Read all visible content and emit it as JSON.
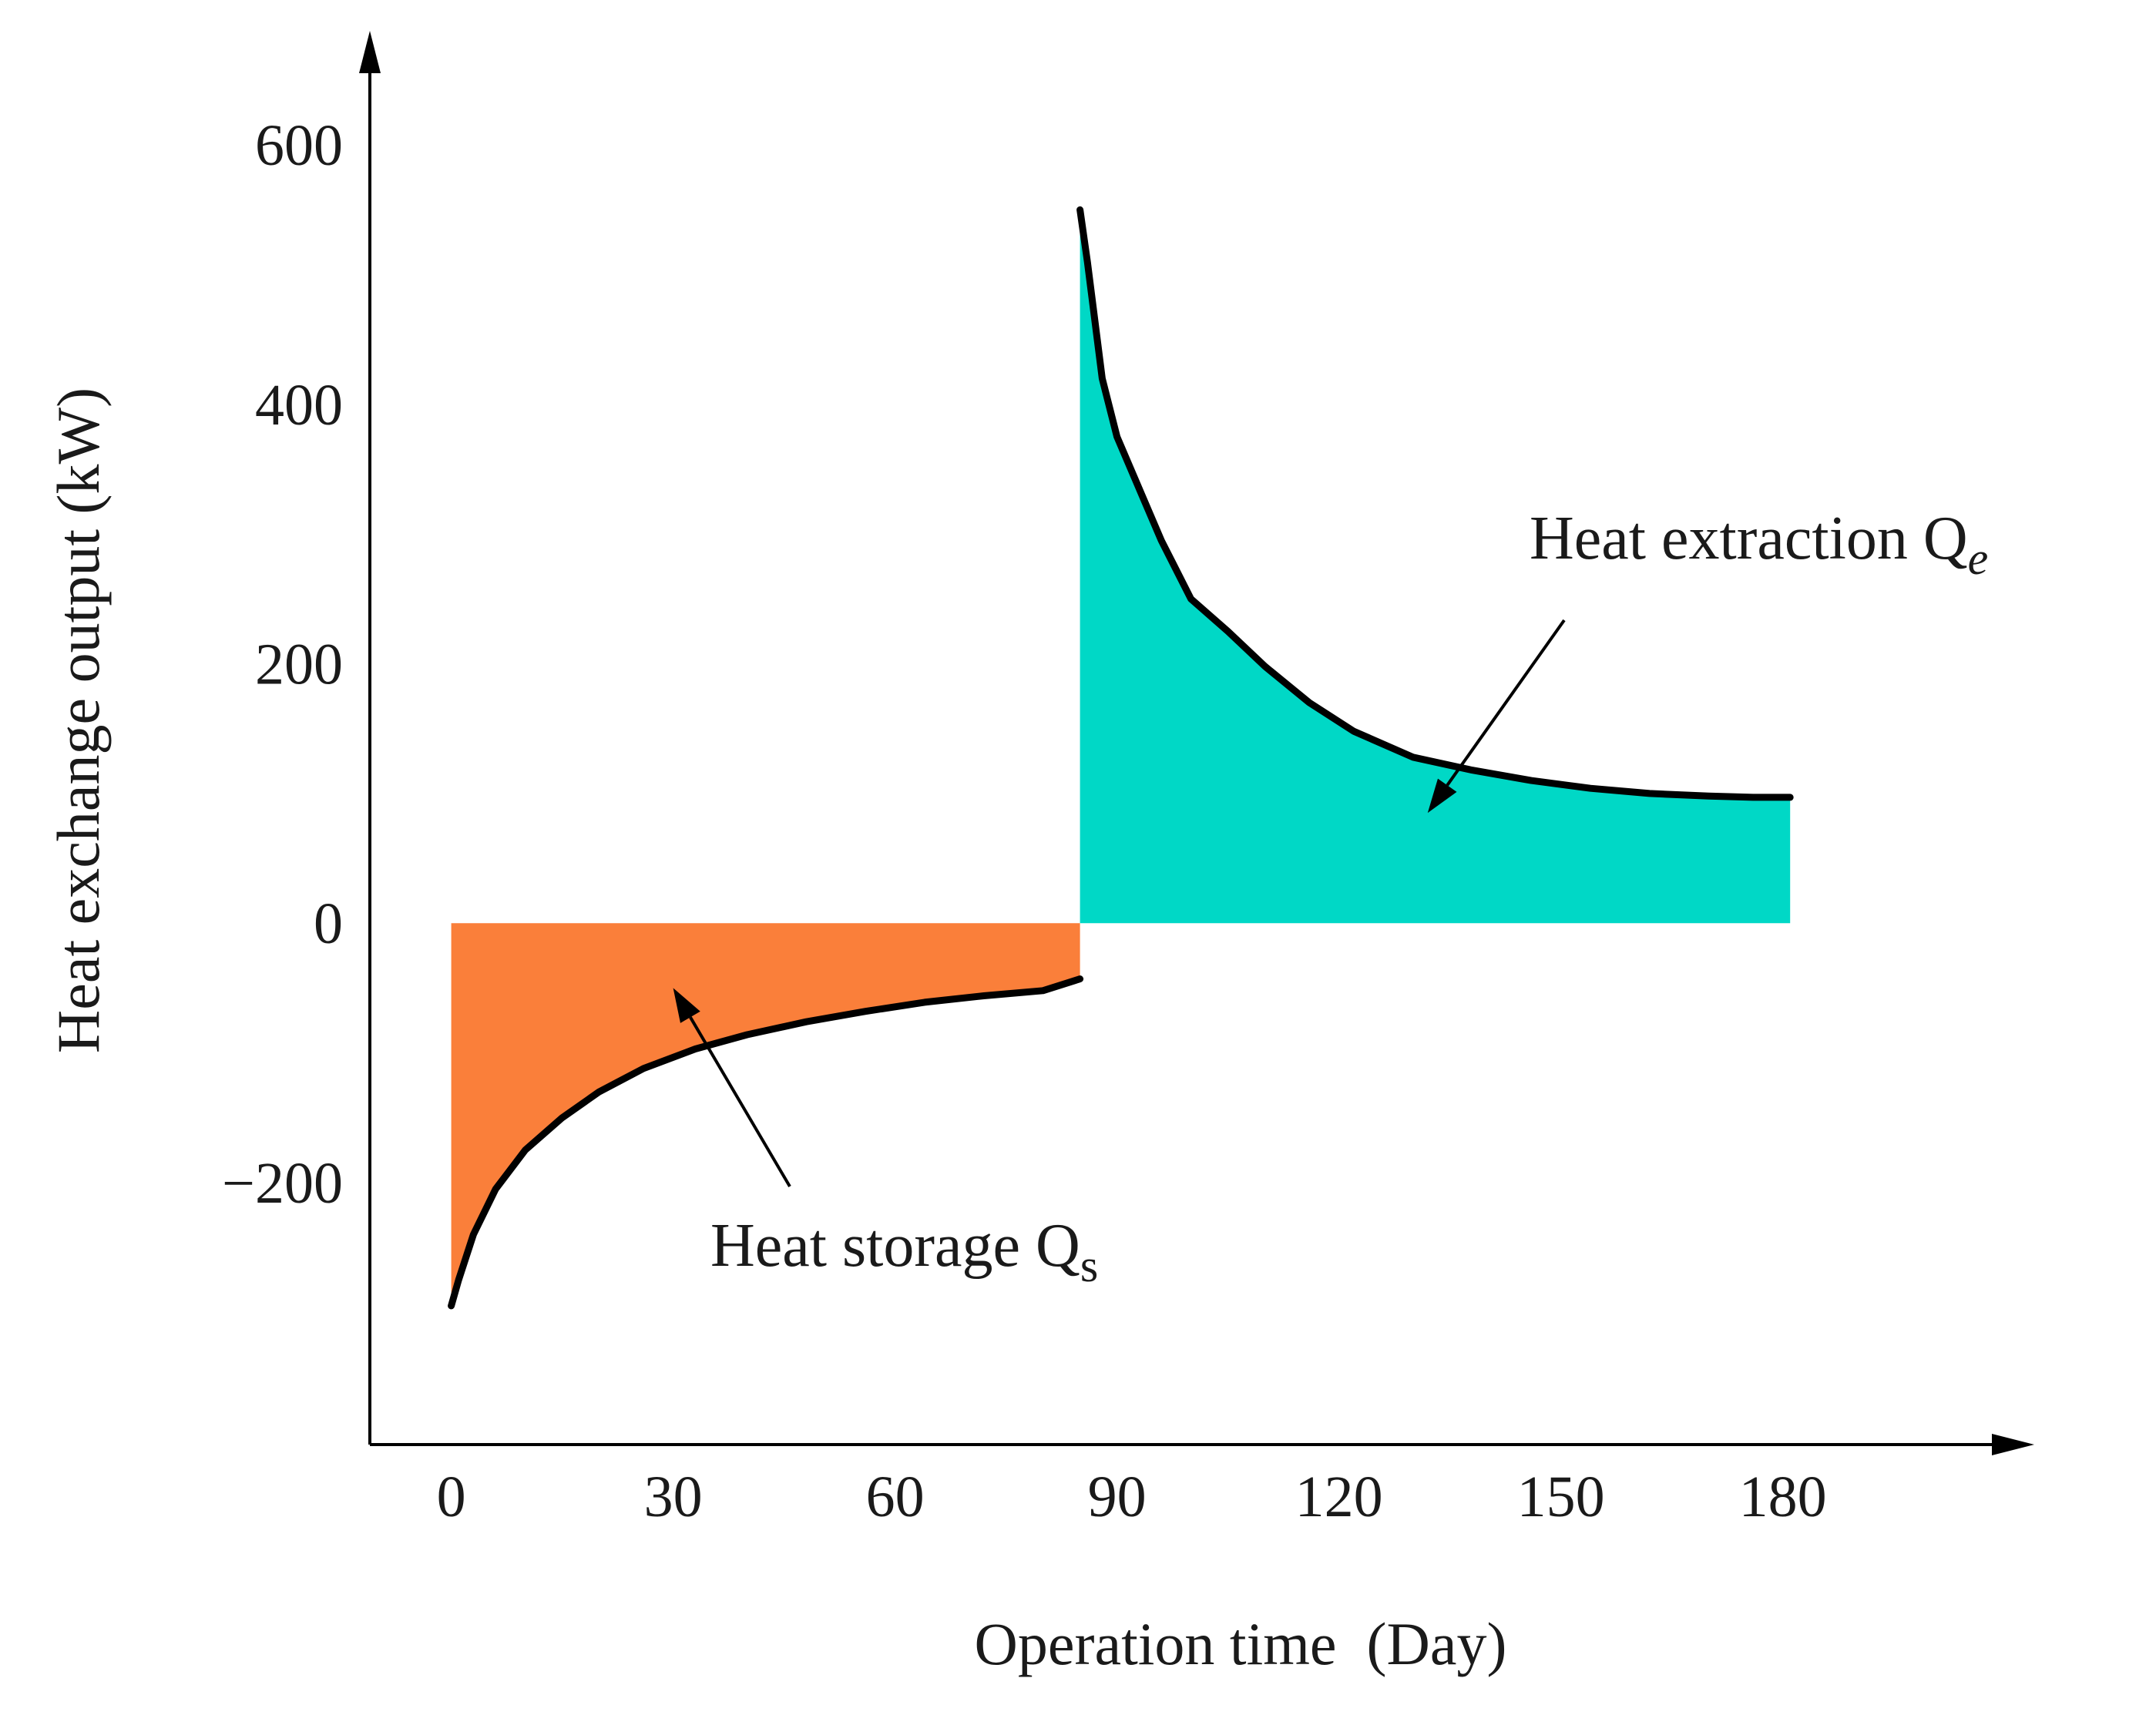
{
  "chart_data": {
    "type": "area",
    "title": "",
    "xlabel": "Operation time (Day)",
    "ylabel": "Heat exchange output (kW)",
    "xlim": [
      -11,
      214
    ],
    "ylim": [
      -402,
      688
    ],
    "x_ticks": [
      0,
      30,
      60,
      90,
      120,
      150,
      180
    ],
    "x_tick_labels": [
      "0",
      "30",
      "60",
      "90",
      "120",
      "150",
      "180"
    ],
    "y_ticks": [
      -200,
      0,
      200,
      400,
      600
    ],
    "y_tick_labels": [
      "−200",
      "0",
      "200",
      "400",
      "600"
    ],
    "series": [
      {
        "name": "Heat storage",
        "color": "#FA7F3A",
        "x": [
          0,
          1,
          3,
          6,
          10,
          15,
          20,
          26,
          33,
          40,
          48,
          56,
          64,
          72,
          80,
          85
        ],
        "y": [
          -295,
          -275,
          -240,
          -205,
          -175,
          -150,
          -130,
          -112,
          -97,
          -86,
          -76,
          -68,
          -61,
          -56,
          -52,
          -43
        ]
      },
      {
        "name": "Heat extraction",
        "color": "#00D8C6",
        "x": [
          85,
          86,
          88,
          90,
          93,
          96,
          100,
          105,
          110,
          116,
          122,
          130,
          138,
          146,
          154,
          162,
          170,
          176,
          181
        ],
        "y": [
          550,
          510,
          420,
          375,
          335,
          295,
          250,
          225,
          198,
          170,
          148,
          128,
          118,
          110,
          104,
          100,
          98,
          97,
          97
        ]
      }
    ],
    "annotations": [
      {
        "name": "heat-extraction-label",
        "text": "Heat extraction Q",
        "subscript": "e",
        "subscript_style": "italic",
        "points_to": [
          132,
          85
        ]
      },
      {
        "name": "heat-storage-label",
        "text": "Heat storage Q",
        "subscript": "s",
        "subscript_style": "normal",
        "points_to": [
          30,
          -50
        ]
      }
    ]
  }
}
